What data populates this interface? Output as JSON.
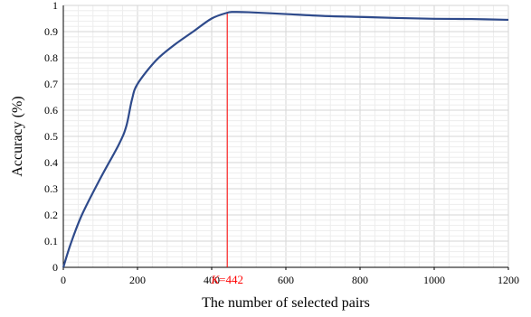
{
  "chart_data": {
    "type": "line",
    "title": "",
    "xlabel": "The number of selected pairs",
    "ylabel": "Accuracy (%)",
    "xlim": [
      0,
      1200
    ],
    "ylim": [
      0,
      1
    ],
    "x_ticks": [
      "0",
      "200",
      "400",
      "600",
      "800",
      "1000",
      "1200"
    ],
    "y_ticks": [
      "0",
      "0.1",
      "0.2",
      "0.3",
      "0.4",
      "0.5",
      "0.6",
      "0.7",
      "0.8",
      "0.9",
      "1"
    ],
    "grid": true,
    "series": [
      {
        "color": "#2e4a8b",
        "x": [
          0,
          20,
          50,
          100,
          150,
          170,
          185,
          200,
          250,
          300,
          350,
          400,
          442,
          460,
          500,
          600,
          700,
          800,
          900,
          1000,
          1100,
          1200
        ],
        "y": [
          0,
          0.09,
          0.2,
          0.34,
          0.47,
          0.54,
          0.64,
          0.7,
          0.79,
          0.85,
          0.9,
          0.95,
          0.972,
          0.975,
          0.974,
          0.967,
          0.96,
          0.956,
          0.952,
          0.949,
          0.948,
          0.945
        ]
      }
    ],
    "annotation": {
      "x": 442,
      "label_k": "K",
      "label_value": "=442",
      "color": "#ff0000"
    }
  }
}
